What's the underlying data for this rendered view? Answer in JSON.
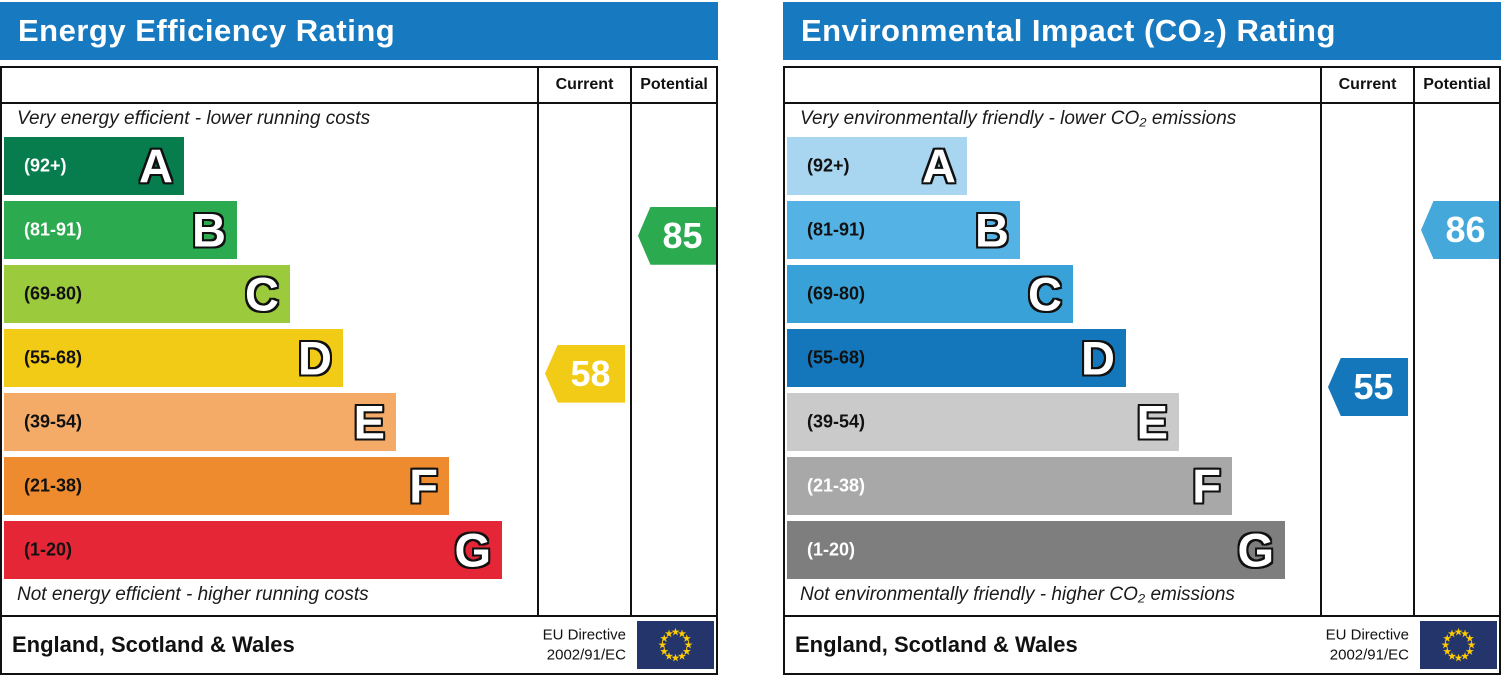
{
  "colors": {
    "header_bg": "#1779bf",
    "border": "#111111",
    "flag_bg": "#24356b",
    "flag_star": "#ffcc00"
  },
  "chart_data": [
    {
      "type": "bar",
      "title": "Energy Efficiency Rating",
      "columns": [
        "Current",
        "Potential"
      ],
      "top_note": "Very energy efficient - lower running costs",
      "bottom_note": "Not energy efficient - higher running costs",
      "bands": [
        {
          "letter": "A",
          "range_label": "(92+)",
          "min": 92,
          "max": 100,
          "color": "#077d4e",
          "label_color": "#ffffff"
        },
        {
          "letter": "B",
          "range_label": "(81-91)",
          "min": 81,
          "max": 91,
          "color": "#2caa50",
          "label_color": "#ffffff"
        },
        {
          "letter": "C",
          "range_label": "(69-80)",
          "min": 69,
          "max": 80,
          "color": "#9bca3c",
          "label_color": "#111111"
        },
        {
          "letter": "D",
          "range_label": "(55-68)",
          "min": 55,
          "max": 68,
          "color": "#f2cb16",
          "label_color": "#111111"
        },
        {
          "letter": "E",
          "range_label": "(39-54)",
          "min": 39,
          "max": 54,
          "color": "#f5ab68",
          "label_color": "#111111"
        },
        {
          "letter": "F",
          "range_label": "(21-38)",
          "min": 21,
          "max": 38,
          "color": "#ee8b2e",
          "label_color": "#111111"
        },
        {
          "letter": "G",
          "range_label": "(1-20)",
          "min": 1,
          "max": 20,
          "color": "#e52637",
          "label_color": "#111111"
        }
      ],
      "current": {
        "value": 58,
        "color": "#f2cb16"
      },
      "potential": {
        "value": 85,
        "color": "#2caa50"
      },
      "footer": {
        "region": "England, Scotland & Wales",
        "directive": [
          "EU Directive",
          "2002/91/EC"
        ]
      }
    },
    {
      "type": "bar",
      "title": "Environmental Impact (CO₂) Rating",
      "columns": [
        "Current",
        "Potential"
      ],
      "top_note": "Very environmentally friendly - lower CO₂ emissions",
      "bottom_note": "Not environmentally friendly - higher CO₂ emissions",
      "bands": [
        {
          "letter": "A",
          "range_label": "(92+)",
          "min": 92,
          "max": 100,
          "color": "#a8d5f0",
          "label_color": "#111111"
        },
        {
          "letter": "B",
          "range_label": "(81-91)",
          "min": 81,
          "max": 91,
          "color": "#55b2e4",
          "label_color": "#111111"
        },
        {
          "letter": "C",
          "range_label": "(69-80)",
          "min": 69,
          "max": 80,
          "color": "#38a2d8",
          "label_color": "#111111"
        },
        {
          "letter": "D",
          "range_label": "(55-68)",
          "min": 55,
          "max": 68,
          "color": "#1477bc",
          "label_color": "#111111"
        },
        {
          "letter": "E",
          "range_label": "(39-54)",
          "min": 39,
          "max": 54,
          "color": "#cacaca",
          "label_color": "#111111"
        },
        {
          "letter": "F",
          "range_label": "(21-38)",
          "min": 21,
          "max": 38,
          "color": "#a8a8a8",
          "label_color": "#ffffff"
        },
        {
          "letter": "G",
          "range_label": "(1-20)",
          "min": 1,
          "max": 20,
          "color": "#7e7e7e",
          "label_color": "#ffffff"
        }
      ],
      "current": {
        "value": 55,
        "color": "#1477bc"
      },
      "potential": {
        "value": 86,
        "color": "#45a8da"
      },
      "footer": {
        "region": "England, Scotland & Wales",
        "directive": [
          "EU Directive",
          "2002/91/EC"
        ]
      }
    }
  ]
}
